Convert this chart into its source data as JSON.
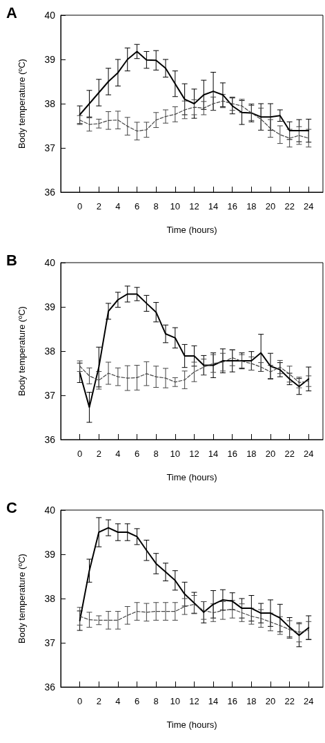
{
  "chart_data": [
    {
      "type": "line",
      "title": "A",
      "xlabel": "Time (hours)",
      "ylabel": "Body temperature (ºC)",
      "x": [
        0,
        1,
        2,
        3,
        4,
        5,
        6,
        7,
        8,
        9,
        10,
        11,
        12,
        13,
        14,
        15,
        16,
        17,
        18,
        19,
        20,
        21,
        22,
        23,
        24
      ],
      "xlim": [
        -2,
        25.5
      ],
      "xticks": [
        0,
        2,
        4,
        6,
        8,
        10,
        12,
        14,
        16,
        18,
        20,
        22,
        24
      ],
      "ylim": [
        36,
        40
      ],
      "yticks": [
        36,
        37,
        38,
        39,
        40
      ],
      "marker": "none",
      "grid": false,
      "series": [
        {
          "color": "#000000",
          "line_style": "solid",
          "values": [
            37.75,
            38.0,
            38.25,
            38.5,
            38.7,
            39.0,
            39.18,
            38.99,
            38.98,
            38.8,
            38.45,
            38.1,
            38.0,
            38.2,
            38.28,
            38.2,
            37.95,
            37.8,
            37.79,
            37.7,
            37.7,
            37.73,
            37.39,
            37.39,
            37.39
          ],
          "errors": [
            0.2,
            0.3,
            0.3,
            0.3,
            0.3,
            0.26,
            0.16,
            0.19,
            0.22,
            0.2,
            0.29,
            0.35,
            0.33,
            0.33,
            0.43,
            0.27,
            0.18,
            0.27,
            0.2,
            0.3,
            0.3,
            0.13,
            0.2,
            0.25,
            0.26
          ]
        },
        {
          "color": "#444444",
          "line_style": "dashed",
          "values": [
            37.63,
            37.53,
            37.55,
            37.62,
            37.63,
            37.49,
            37.38,
            37.41,
            37.63,
            37.71,
            37.76,
            37.86,
            37.92,
            37.9,
            38.0,
            38.06,
            38.0,
            37.95,
            37.79,
            37.65,
            37.44,
            37.3,
            37.22,
            37.28,
            37.22
          ],
          "errors": [
            0.1,
            0.15,
            0.1,
            0.2,
            0.2,
            0.2,
            0.2,
            0.17,
            0.17,
            0.15,
            0.17,
            0.2,
            0.17,
            0.15,
            0.15,
            0.15,
            0.15,
            0.15,
            0.17,
            0.25,
            0.2,
            0.2,
            0.2,
            0.2,
            0.2
          ]
        }
      ]
    },
    {
      "type": "line",
      "title": "B",
      "xlabel": "Time (hours)",
      "ylabel": "Body temperature (ºC)",
      "x": [
        0,
        1,
        2,
        3,
        4,
        5,
        6,
        7,
        8,
        9,
        10,
        11,
        12,
        13,
        14,
        15,
        16,
        17,
        18,
        19,
        20,
        21,
        22,
        23,
        24
      ],
      "xlim": [
        -2,
        25.5
      ],
      "xticks": [
        0,
        2,
        4,
        6,
        8,
        10,
        12,
        14,
        16,
        18,
        20,
        22,
        24
      ],
      "ylim": [
        36,
        40
      ],
      "yticks": [
        36,
        37,
        38,
        39,
        40
      ],
      "marker": "none",
      "grid": false,
      "series": [
        {
          "color": "#000000",
          "line_style": "solid",
          "values": [
            37.51,
            36.73,
            37.64,
            38.9,
            39.16,
            39.29,
            39.29,
            39.08,
            38.88,
            38.39,
            38.3,
            37.89,
            37.89,
            37.68,
            37.68,
            37.78,
            37.78,
            37.78,
            37.78,
            37.96,
            37.66,
            37.58,
            37.37,
            37.2,
            37.37
          ],
          "errors": [
            0.22,
            0.34,
            0.45,
            0.18,
            0.17,
            0.18,
            0.15,
            0.18,
            0.22,
            0.2,
            0.23,
            0.26,
            0.23,
            0.22,
            0.28,
            0.27,
            0.25,
            0.18,
            0.21,
            0.42,
            0.29,
            0.16,
            0.13,
            0.18,
            0.27
          ]
        },
        {
          "color": "#444444",
          "line_style": "dashed",
          "values": [
            37.66,
            37.44,
            37.34,
            37.5,
            37.42,
            37.39,
            37.4,
            37.49,
            37.42,
            37.39,
            37.3,
            37.35,
            37.53,
            37.64,
            37.72,
            37.75,
            37.85,
            37.77,
            37.72,
            37.64,
            37.53,
            37.64,
            37.48,
            37.29,
            37.32
          ],
          "errors": [
            0.12,
            0.18,
            0.2,
            0.25,
            0.2,
            0.28,
            0.28,
            0.27,
            0.24,
            0.22,
            0.1,
            0.2,
            0.22,
            0.18,
            0.2,
            0.2,
            0.18,
            0.15,
            0.15,
            0.1,
            0.15,
            0.15,
            0.18,
            0.12,
            0.12
          ]
        }
      ]
    },
    {
      "type": "line",
      "title": "C",
      "xlabel": "Time (hours)",
      "ylabel": "Body temperature (ºC)",
      "x": [
        0,
        1,
        2,
        3,
        4,
        5,
        6,
        7,
        8,
        9,
        10,
        11,
        12,
        13,
        14,
        15,
        16,
        17,
        18,
        19,
        20,
        21,
        22,
        23,
        24
      ],
      "xlim": [
        -2,
        25.5
      ],
      "xticks": [
        0,
        2,
        4,
        6,
        8,
        10,
        12,
        14,
        16,
        18,
        20,
        22,
        24
      ],
      "ylim": [
        36,
        40
      ],
      "yticks": [
        36,
        37,
        38,
        39,
        40
      ],
      "marker": "none",
      "grid": false,
      "series": [
        {
          "color": "#000000",
          "line_style": "solid",
          "values": [
            37.5,
            38.63,
            39.5,
            39.6,
            39.5,
            39.5,
            39.4,
            39.09,
            38.79,
            38.6,
            38.41,
            38.1,
            37.9,
            37.69,
            37.87,
            37.97,
            37.94,
            37.78,
            37.78,
            37.67,
            37.67,
            37.56,
            37.35,
            37.17,
            37.34
          ],
          "errors": [
            0.22,
            0.26,
            0.33,
            0.18,
            0.19,
            0.19,
            0.18,
            0.23,
            0.23,
            0.2,
            0.22,
            0.27,
            0.24,
            0.24,
            0.31,
            0.23,
            0.19,
            0.22,
            0.29,
            0.22,
            0.3,
            0.31,
            0.22,
            0.26,
            0.27
          ]
        },
        {
          "color": "#444444",
          "line_style": "dashed",
          "values": [
            37.6,
            37.52,
            37.51,
            37.51,
            37.51,
            37.62,
            37.71,
            37.69,
            37.71,
            37.71,
            37.71,
            37.82,
            37.87,
            37.73,
            37.68,
            37.73,
            37.76,
            37.68,
            37.6,
            37.55,
            37.47,
            37.39,
            37.3,
            37.24,
            37.28
          ],
          "errors": [
            0.2,
            0.17,
            0.1,
            0.2,
            0.2,
            0.2,
            0.2,
            0.2,
            0.2,
            0.2,
            0.2,
            0.18,
            0.2,
            0.2,
            0.2,
            0.2,
            0.2,
            0.2,
            0.18,
            0.2,
            0.2,
            0.2,
            0.2,
            0.22,
            0.2
          ]
        }
      ]
    }
  ]
}
